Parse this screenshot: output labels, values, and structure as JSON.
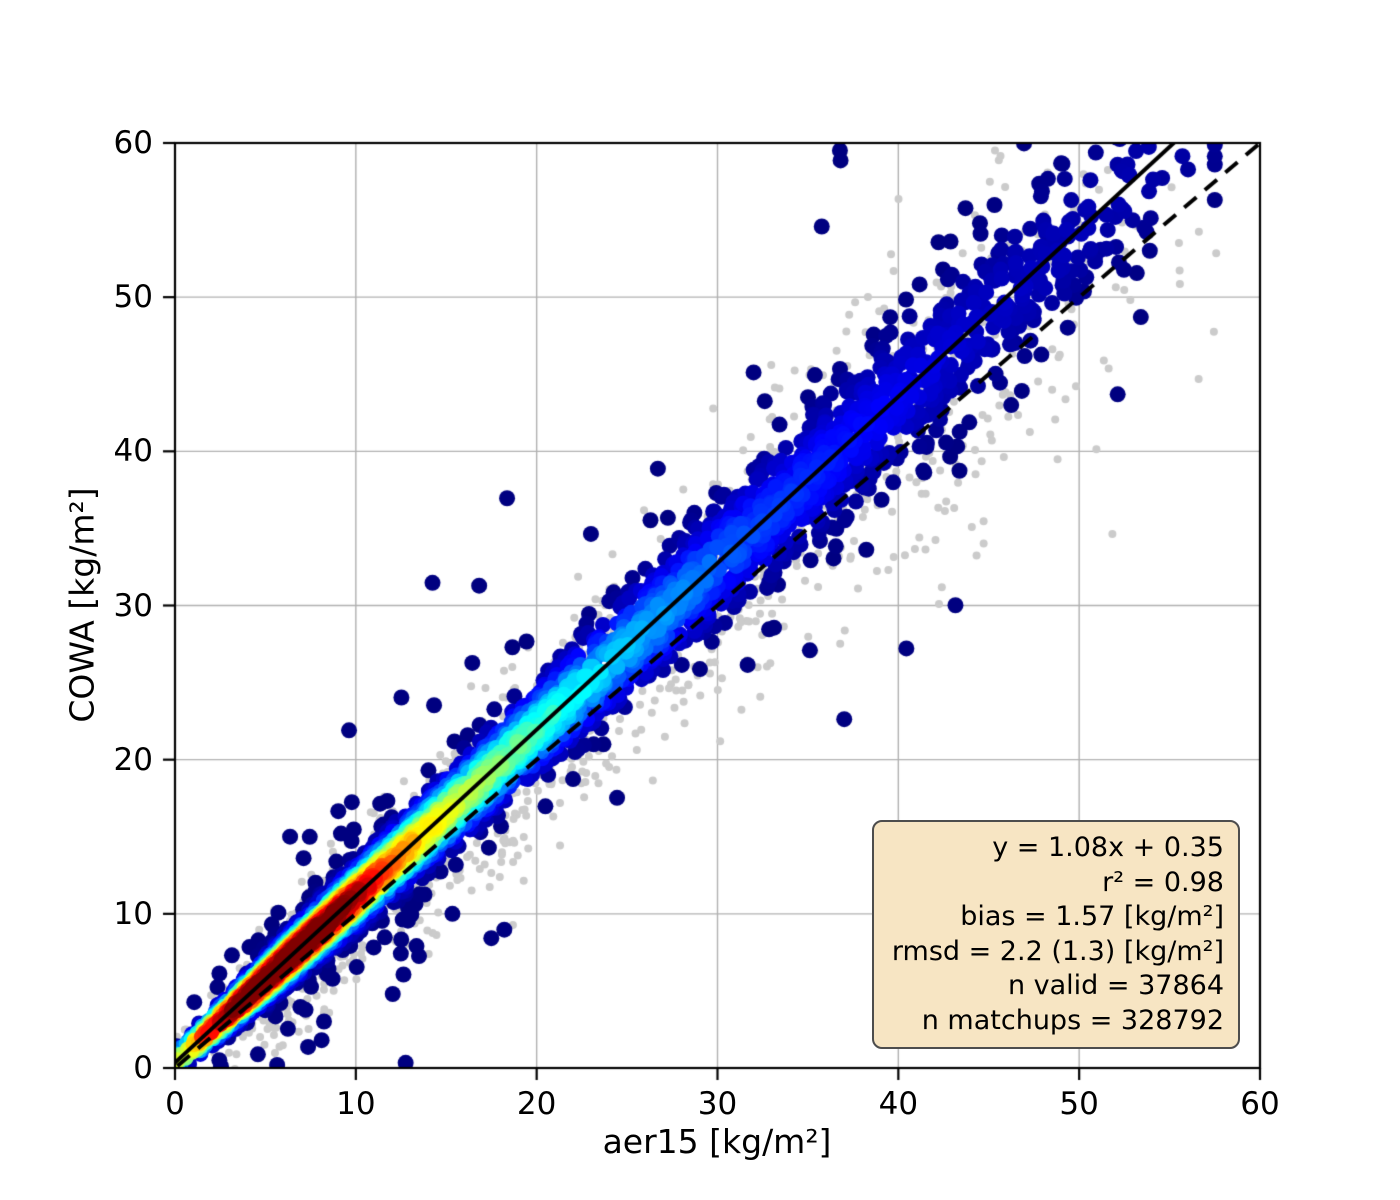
{
  "figure": {
    "background_color": "#ffffff",
    "xlabel": "aer15 [kg/m²]",
    "ylabel": "COWA [kg/m²]",
    "stats_box": {
      "bg_color": "#f7e5c3",
      "border_color": "#4d4d4d",
      "lines": [
        "y = 1.08x + 0.35",
        "r² = 0.98",
        "bias = 1.57 [kg/m²]",
        "rmsd = 2.2 (1.3) [kg/m²]",
        "n valid = 37864",
        "n matchups = 328792"
      ]
    }
  },
  "chart_data": {
    "type": "scatter",
    "title": "",
    "xlabel": "aer15 [kg/m²]",
    "ylabel": "COWA [kg/m²]",
    "xlim": [
      0,
      60
    ],
    "ylim": [
      0,
      60
    ],
    "xticks": [
      0,
      10,
      20,
      30,
      40,
      50,
      60
    ],
    "yticks": [
      0,
      10,
      20,
      30,
      40,
      50,
      60
    ],
    "grid": true,
    "grid_color": "#b0b0b0",
    "fit_line": {
      "slope": 1.08,
      "intercept": 0.35,
      "color": "#000000",
      "style": "solid",
      "width": 4
    },
    "identity_line": {
      "slope": 1.0,
      "intercept": 0.0,
      "color": "#000000",
      "style": "dashed",
      "dash": [
        16,
        11
      ],
      "width": 4
    },
    "stats": {
      "equation": "y = 1.08x + 0.35",
      "r2": 0.98,
      "bias": 1.57,
      "bias_units": "kg/m²",
      "rmsd": 2.2,
      "rmsd_unbiased": 1.3,
      "rmsd_units": "kg/m²",
      "n_valid": 37864,
      "n_matchups": 328792
    },
    "colormap": "jet",
    "density_scatter": {
      "seed": 1337,
      "valid_points": {
        "n": 5200,
        "radius_px": 8,
        "center_line": [
          1.08,
          0.35
        ],
        "x_mixture": [
          {
            "w": 0.4,
            "mu": 6.5,
            "sd": 2.5
          },
          {
            "w": 0.22,
            "mu": 12.0,
            "sd": 4.0
          },
          {
            "w": 0.18,
            "mu": 20.0,
            "sd": 7.0
          },
          {
            "w": 0.14,
            "mu": 32.0,
            "sd": 8.5
          },
          {
            "w": 0.06,
            "mu": 45.0,
            "sd": 6.5
          }
        ],
        "sigma": [
          0.4,
          0.052
        ],
        "outlier_frac": 0.035,
        "outlier_mult": 3.4,
        "density_profile": [
          [
            0,
            0.5
          ],
          [
            2,
            0.8
          ],
          [
            4,
            0.95
          ],
          [
            6,
            1.0
          ],
          [
            8,
            0.98
          ],
          [
            10,
            0.86
          ],
          [
            12,
            0.68
          ],
          [
            14,
            0.58
          ],
          [
            16,
            0.5
          ],
          [
            18,
            0.45
          ],
          [
            20,
            0.4
          ],
          [
            24,
            0.3
          ],
          [
            28,
            0.24
          ],
          [
            32,
            0.18
          ],
          [
            38,
            0.12
          ],
          [
            44,
            0.07
          ],
          [
            50,
            0.05
          ],
          [
            58,
            0.03
          ]
        ]
      },
      "background_points": {
        "n": 1550,
        "radius_px": 4,
        "color": "#cbcbcb",
        "center_line": [
          1.03,
          0.2
        ],
        "x_mixture": [
          {
            "w": 0.28,
            "mu": 8.0,
            "sd": 3.5
          },
          {
            "w": 0.25,
            "mu": 16.0,
            "sd": 6.0
          },
          {
            "w": 0.27,
            "mu": 28.0,
            "sd": 9.0
          },
          {
            "w": 0.2,
            "mu": 42.0,
            "sd": 8.0
          }
        ],
        "sigma": [
          1.2,
          0.1
        ]
      }
    }
  }
}
